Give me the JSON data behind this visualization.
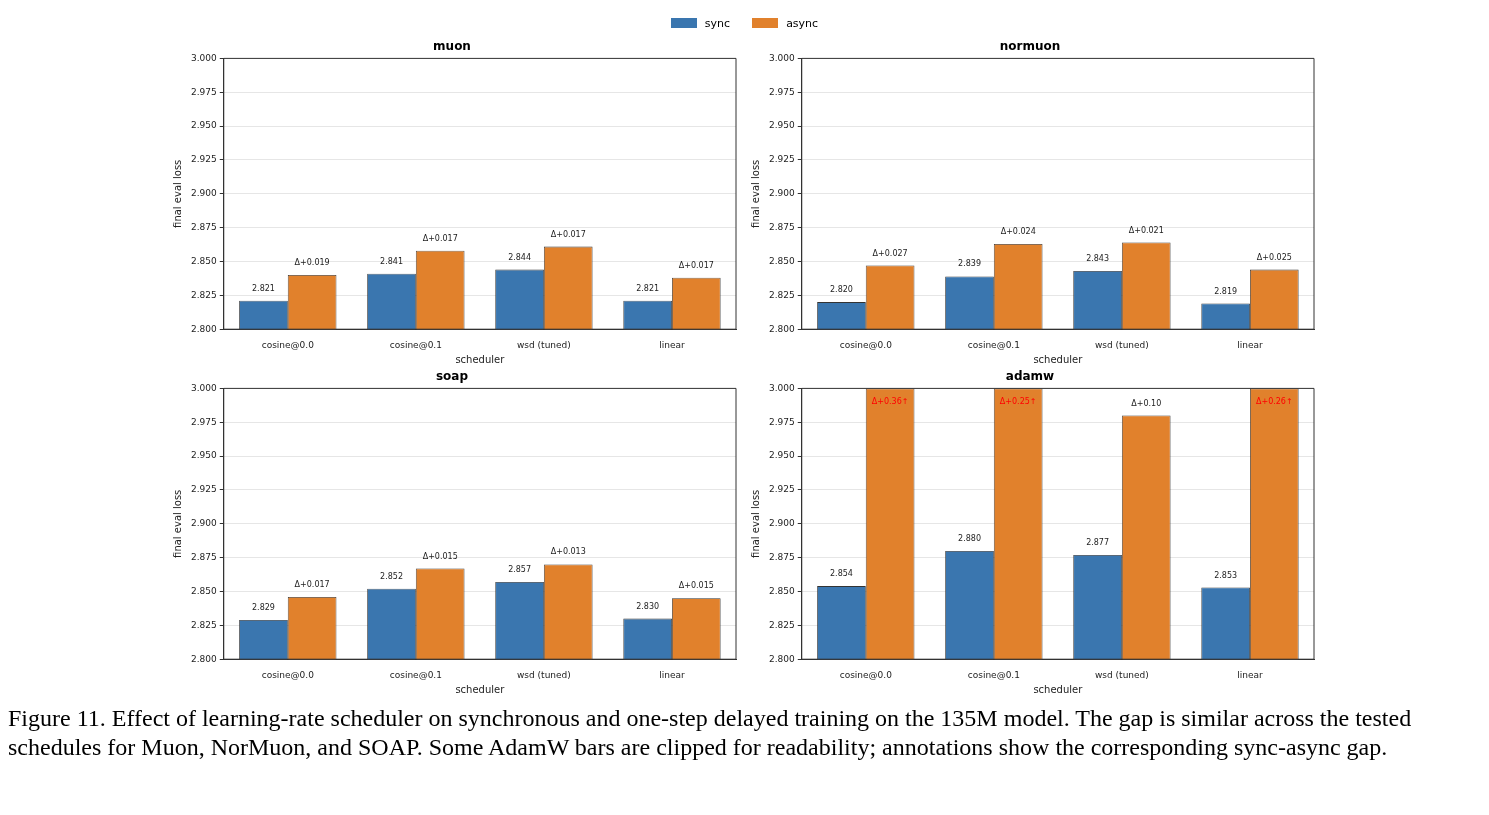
{
  "chart_data": [
    {
      "type": "bar",
      "title": "muon",
      "xlabel": "scheduler",
      "ylabel": "final eval loss",
      "legend": "top",
      "grid": "y",
      "categories": [
        "cosine@0.0",
        "cosine@0.1",
        "wsd (tuned)",
        "linear"
      ],
      "ylim": [
        2.8,
        3.0
      ],
      "yticks": [
        {
          "value": 2.8,
          "label": "2.800"
        },
        {
          "value": 2.825,
          "label": "2.825"
        },
        {
          "value": 2.85,
          "label": "2.850"
        },
        {
          "value": 2.875,
          "label": "2.875"
        },
        {
          "value": 2.9,
          "label": "2.900"
        },
        {
          "value": 2.925,
          "label": "2.925"
        },
        {
          "value": 2.95,
          "label": "2.950"
        },
        {
          "value": 2.975,
          "label": "2.975"
        },
        {
          "value": 3.0,
          "label": "3.000"
        }
      ],
      "series": [
        {
          "name": "sync",
          "color": "#3a76af",
          "values": [
            2.821,
            2.841,
            2.844,
            2.821
          ],
          "value_labels": [
            "2.821",
            "2.841",
            "2.844",
            "2.821"
          ]
        },
        {
          "name": "async",
          "color": "#e1812c",
          "values": [
            2.84,
            2.858,
            2.861,
            2.838
          ],
          "value_labels": [
            "Δ+0.019",
            "Δ+0.017",
            "Δ+0.017",
            "Δ+0.017"
          ]
        }
      ]
    },
    {
      "type": "bar",
      "title": "normuon",
      "xlabel": "scheduler",
      "ylabel": "final eval loss",
      "grid": "y",
      "categories": [
        "cosine@0.0",
        "cosine@0.1",
        "wsd (tuned)",
        "linear"
      ],
      "ylim": [
        2.8,
        3.0
      ],
      "yticks": [
        {
          "value": 2.8,
          "label": "2.800"
        },
        {
          "value": 2.825,
          "label": "2.825"
        },
        {
          "value": 2.85,
          "label": "2.850"
        },
        {
          "value": 2.875,
          "label": "2.875"
        },
        {
          "value": 2.9,
          "label": "2.900"
        },
        {
          "value": 2.925,
          "label": "2.925"
        },
        {
          "value": 2.95,
          "label": "2.950"
        },
        {
          "value": 2.975,
          "label": "2.975"
        },
        {
          "value": 3.0,
          "label": "3.000"
        }
      ],
      "series": [
        {
          "color": "#3a76af",
          "values": [
            2.82,
            2.839,
            2.843,
            2.819
          ],
          "value_labels": [
            "2.820",
            "2.839",
            "2.843",
            "2.819"
          ]
        },
        {
          "color": "#e1812c",
          "values": [
            2.847,
            2.863,
            2.864,
            2.844
          ],
          "value_labels": [
            "Δ+0.027",
            "Δ+0.024",
            "Δ+0.021",
            "Δ+0.025"
          ]
        }
      ]
    },
    {
      "type": "bar",
      "title": "soap",
      "xlabel": "scheduler",
      "ylabel": "final eval loss",
      "grid": "y",
      "categories": [
        "cosine@0.0",
        "cosine@0.1",
        "wsd (tuned)",
        "linear"
      ],
      "ylim": [
        2.8,
        3.0
      ],
      "yticks": [
        {
          "value": 2.8,
          "label": "2.800"
        },
        {
          "value": 2.825,
          "label": "2.825"
        },
        {
          "value": 2.85,
          "label": "2.850"
        },
        {
          "value": 2.875,
          "label": "2.875"
        },
        {
          "value": 2.9,
          "label": "2.900"
        },
        {
          "value": 2.925,
          "label": "2.925"
        },
        {
          "value": 2.95,
          "label": "2.950"
        },
        {
          "value": 2.975,
          "label": "2.975"
        },
        {
          "value": 3.0,
          "label": "3.000"
        }
      ],
      "series": [
        {
          "color": "#3a76af",
          "values": [
            2.829,
            2.852,
            2.857,
            2.83
          ],
          "value_labels": [
            "2.829",
            "2.852",
            "2.857",
            "2.830"
          ]
        },
        {
          "color": "#e1812c",
          "values": [
            2.846,
            2.867,
            2.87,
            2.845
          ],
          "value_labels": [
            "Δ+0.017",
            "Δ+0.015",
            "Δ+0.013",
            "Δ+0.015"
          ]
        }
      ]
    },
    {
      "type": "bar",
      "title": "adamw",
      "xlabel": "scheduler",
      "ylabel": "final eval loss",
      "grid": "y",
      "categories": [
        "cosine@0.0",
        "cosine@0.1",
        "wsd (tuned)",
        "linear"
      ],
      "ylim": [
        2.8,
        3.0
      ],
      "yticks": [
        {
          "value": 2.8,
          "label": "2.800"
        },
        {
          "value": 2.825,
          "label": "2.825"
        },
        {
          "value": 2.85,
          "label": "2.850"
        },
        {
          "value": 2.875,
          "label": "2.875"
        },
        {
          "value": 2.9,
          "label": "2.900"
        },
        {
          "value": 2.925,
          "label": "2.925"
        },
        {
          "value": 2.95,
          "label": "2.950"
        },
        {
          "value": 2.975,
          "label": "2.975"
        },
        {
          "value": 3.0,
          "label": "3.000"
        }
      ],
      "series": [
        {
          "color": "#3a76af",
          "values": [
            2.854,
            2.88,
            2.877,
            2.853
          ],
          "value_labels": [
            "2.854",
            "2.880",
            "2.877",
            "2.853"
          ]
        },
        {
          "color": "#e1812c",
          "values": [
            3.0,
            3.0,
            2.98,
            3.0
          ],
          "value_labels": [
            "Δ+0.36↑",
            "Δ+0.25↑",
            "Δ+0.10",
            "Δ+0.26↑"
          ]
        }
      ],
      "annotations": [
        "Figure 11. Effect of learning-rate scheduler on synchronous and one-step delayed training on the 135M model. The gap is similar across the tested schedules for Muon, NorMuon, and SOAP. Some AdamW bars are clipped for readability; annotations show the corresponding sync-async gap."
      ]
    }
  ]
}
